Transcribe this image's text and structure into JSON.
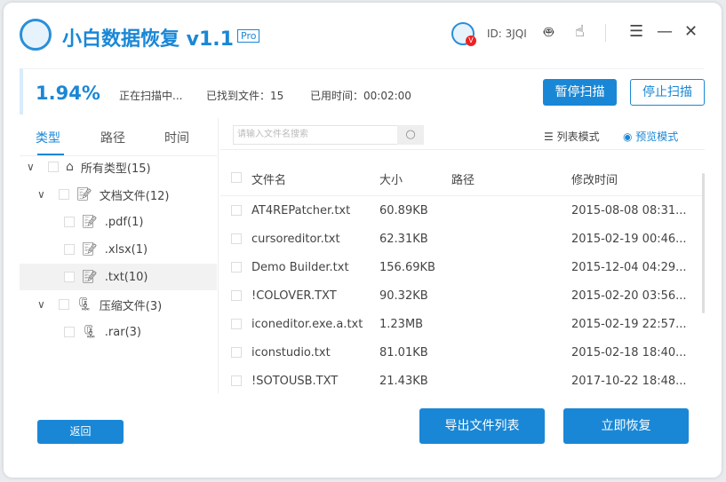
{
  "app": {
    "title": "小白数据恢复 v1.1",
    "badge": "Pro",
    "user_id": "ID: 3JQI",
    "vip_badge": "V"
  },
  "window_controls": {
    "menu": "☰",
    "minimize": "—",
    "close": "✕"
  },
  "scan": {
    "percent": "1.94%",
    "status": "正在扫描中...",
    "found": "已找到文件：15",
    "elapsed": "已用时间：00:02:00",
    "pause_label": "暂停扫描",
    "stop_label": "停止扫描",
    "progress_percent": 1.94
  },
  "left_tabs": [
    {
      "label": "类型",
      "active": true
    },
    {
      "label": "路径"
    },
    {
      "label": "时间"
    }
  ],
  "tree": [
    {
      "label": "所有类型(15)",
      "level": 0,
      "icon": "drive-icon"
    },
    {
      "label": "文档文件(12)",
      "level": 1,
      "icon": "document-icon"
    },
    {
      "label": ".pdf(1)",
      "level": 2,
      "icon": "document-icon"
    },
    {
      "label": ".xlsx(1)",
      "level": 2,
      "icon": "document-icon"
    },
    {
      "label": ".txt(10)",
      "level": 2,
      "icon": "document-icon",
      "selected": true
    },
    {
      "label": "压缩文件(3)",
      "level": 1,
      "icon": "zip-icon"
    },
    {
      "label": ".rar(3)",
      "level": 2,
      "icon": "zip-icon"
    }
  ],
  "search": {
    "placeholder": "请输入文件名搜索"
  },
  "view_modes": {
    "list": "列表模式",
    "preview": "预览模式"
  },
  "table": {
    "headers": [
      "文件名",
      "大小",
      "路径",
      "修改时间"
    ],
    "rows": [
      [
        "AT4REPatcher.txt",
        "60.89KB",
        "",
        "2015-08-08 08:31..."
      ],
      [
        "cursoreditor.txt",
        "62.31KB",
        "",
        "2015-02-19 00:46..."
      ],
      [
        "Demo Builder.txt",
        "156.69KB",
        "",
        "2015-12-04 04:29..."
      ],
      [
        "!COLOVER.TXT",
        "90.32KB",
        "",
        "2015-02-20 03:56..."
      ],
      [
        "iconeditor.exe.a.txt",
        "1.23MB",
        "",
        "2015-02-19 22:57..."
      ],
      [
        "iconstudio.txt",
        "81.01KB",
        "",
        "2015-02-18 18:40..."
      ],
      [
        "!SOTOUSB.TXT",
        "21.43KB",
        "",
        "2017-10-22 18:48..."
      ]
    ]
  },
  "footer": {
    "back": "返回",
    "export": "导出文件列表",
    "recover": "立即恢复"
  },
  "colors": {
    "accent": "#1a87d6"
  }
}
